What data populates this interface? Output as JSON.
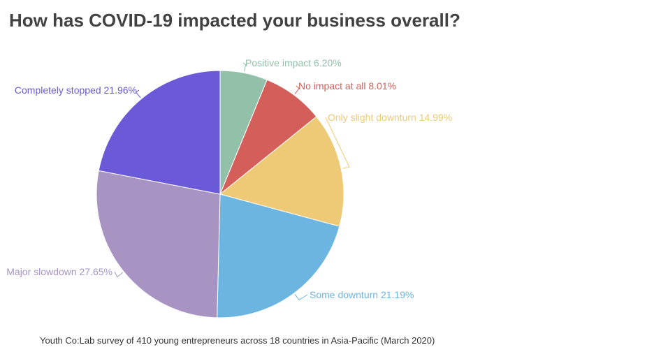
{
  "chart_data": {
    "type": "pie",
    "title": "How has COVID-19 impacted your business overall?",
    "source": "Youth Co:Lab survey of 410 young entrepreneurs across 18 countries in Asia-Pacific (March 2020)",
    "slices": [
      {
        "label": "Positive impact",
        "value": 6.2,
        "value_text": "6.20%",
        "color": "#93c0a9"
      },
      {
        "label": "No impact at all",
        "value": 8.01,
        "value_text": "8.01%",
        "color": "#d45e59"
      },
      {
        "label": "Only slight downturn",
        "value": 14.99,
        "value_text": "14.99%",
        "color": "#eeca76"
      },
      {
        "label": "Some downturn",
        "value": 21.19,
        "value_text": "21.19%",
        "color": "#6cb5e1"
      },
      {
        "label": "Major slowdown",
        "value": 27.65,
        "value_text": "27.65%",
        "color": "#a794c3"
      },
      {
        "label": "Completely stopped",
        "value": 21.96,
        "value_text": "21.96%",
        "color": "#6a5ad7"
      }
    ]
  }
}
